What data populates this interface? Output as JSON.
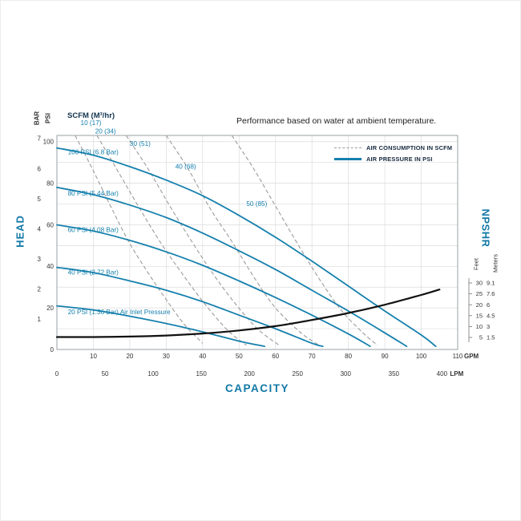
{
  "title": "Performance based on water at ambient temperature.",
  "scfm_header": "SCFM (M³/hr)",
  "colors": {
    "accent_blue": "#1279a7",
    "curve_blue": "#1580ad",
    "dashed_gray": "#9b9b9b",
    "grid": "#dcdcdc",
    "plot_border": "#9aa0a5",
    "text_dark": "#333333",
    "npshr_curve": "#111111"
  },
  "chart_data": {
    "type": "line",
    "title": "Performance based on water at ambient temperature.",
    "legend": [
      {
        "label": "AIR CONSUMPTION IN SCFM",
        "style": "dashed"
      },
      {
        "label": "AIR PRESSURE IN PSI",
        "style": "solid"
      }
    ],
    "x_axis": {
      "label": "CAPACITY",
      "gpm_ticks": [
        10,
        20,
        30,
        40,
        50,
        60,
        70,
        80,
        90,
        100,
        110
      ],
      "gpm_unit": "GPM",
      "lpm_ticks": [
        0,
        50,
        100,
        150,
        200,
        250,
        300,
        350,
        400
      ],
      "lpm_unit": "LPM",
      "gpm_range": [
        0,
        110
      ]
    },
    "y_axis": {
      "label": "HEAD",
      "psi_unit_label": "PSI",
      "bar_unit_label": "BAR",
      "psi_ticks": [
        100,
        80,
        60,
        40,
        20
      ],
      "bar_ticks": [
        7,
        6,
        5,
        4,
        3,
        2,
        1
      ],
      "origin": "0",
      "psi_range": [
        0,
        103
      ]
    },
    "right_axis": {
      "label": "NPSHR",
      "feet_label": "Feet",
      "meters_label": "Meters",
      "feet_ticks": [
        30,
        25,
        20,
        15,
        10,
        5
      ],
      "meters_ticks": [
        "9.1",
        "7.6",
        "6",
        "4.5",
        "3",
        "1.5"
      ]
    },
    "pressure_curves": [
      {
        "label": "100 PSI (6.8 Bar)",
        "label_at": [
          3,
          94
        ],
        "points_gpm_psi": [
          [
            0,
            97
          ],
          [
            10,
            93.5
          ],
          [
            20,
            88
          ],
          [
            30,
            81.5
          ],
          [
            40,
            74
          ],
          [
            50,
            64.5
          ],
          [
            60,
            54
          ],
          [
            70,
            42.5
          ],
          [
            80,
            30.5
          ],
          [
            90,
            18.5
          ],
          [
            100,
            7
          ],
          [
            104,
            1.5
          ]
        ]
      },
      {
        "label": "80 PSI (5.44 Bar)",
        "label_at": [
          3,
          74
        ],
        "points_gpm_psi": [
          [
            0,
            78
          ],
          [
            10,
            74.5
          ],
          [
            20,
            69.5
          ],
          [
            30,
            63.5
          ],
          [
            40,
            56
          ],
          [
            50,
            47.5
          ],
          [
            60,
            38.5
          ],
          [
            70,
            28.5
          ],
          [
            80,
            18.5
          ],
          [
            90,
            8
          ],
          [
            96,
            1.5
          ]
        ]
      },
      {
        "label": "60 PSI (4.08 Bar)",
        "label_at": [
          3,
          56.5
        ],
        "points_gpm_psi": [
          [
            0,
            60
          ],
          [
            10,
            57
          ],
          [
            20,
            52.5
          ],
          [
            30,
            47
          ],
          [
            40,
            40.5
          ],
          [
            50,
            33
          ],
          [
            60,
            25
          ],
          [
            70,
            16.5
          ],
          [
            80,
            7.5
          ],
          [
            86,
            1.5
          ]
        ]
      },
      {
        "label": "40 PSI (2.72 Bar)",
        "label_at": [
          3,
          36
        ],
        "points_gpm_psi": [
          [
            0,
            39.5
          ],
          [
            10,
            37
          ],
          [
            20,
            33
          ],
          [
            30,
            28.5
          ],
          [
            40,
            23
          ],
          [
            50,
            16.5
          ],
          [
            60,
            10
          ],
          [
            70,
            3
          ],
          [
            73,
            1.5
          ]
        ]
      },
      {
        "label": "20 PSI (1.36 Bar) Air Inlet Pressure",
        "label_at": [
          3,
          17
        ],
        "points_gpm_psi": [
          [
            0,
            21
          ],
          [
            10,
            19
          ],
          [
            20,
            16
          ],
          [
            30,
            12.5
          ],
          [
            40,
            8.5
          ],
          [
            50,
            4
          ],
          [
            57,
            1.5
          ]
        ]
      }
    ],
    "air_consumption_curves": [
      {
        "label": "10 (17)",
        "label_at": [
          6.5,
          108
        ],
        "points_gpm_psi": [
          [
            5,
            103
          ],
          [
            10,
            86
          ],
          [
            15,
            68
          ],
          [
            20,
            51
          ],
          [
            25,
            37
          ],
          [
            30,
            24
          ],
          [
            35,
            12
          ],
          [
            40,
            3
          ]
        ]
      },
      {
        "label": "20 (34)",
        "label_at": [
          10.5,
          104
        ],
        "points_gpm_psi": [
          [
            11,
            103
          ],
          [
            17,
            85
          ],
          [
            23,
            67
          ],
          [
            29,
            50
          ],
          [
            35,
            35
          ],
          [
            41,
            21
          ],
          [
            47,
            9
          ],
          [
            52,
            2
          ]
        ]
      },
      {
        "label": "30 (51)",
        "label_at": [
          20,
          98
        ],
        "points_gpm_psi": [
          [
            19,
            103
          ],
          [
            25,
            87
          ],
          [
            31,
            69
          ],
          [
            37,
            52
          ],
          [
            43,
            36
          ],
          [
            49,
            22
          ],
          [
            55,
            10
          ],
          [
            61,
            2
          ]
        ]
      },
      {
        "label": "40 (68)",
        "label_at": [
          32.5,
          87
        ],
        "points_gpm_psi": [
          [
            30,
            103
          ],
          [
            36,
            87
          ],
          [
            42,
            68
          ],
          [
            48,
            52
          ],
          [
            54,
            35
          ],
          [
            60,
            20
          ],
          [
            67,
            8
          ],
          [
            72,
            2
          ]
        ]
      },
      {
        "label": "50 (85)",
        "label_at": [
          52,
          69
        ],
        "points_gpm_psi": [
          [
            48,
            103
          ],
          [
            54,
            87
          ],
          [
            60,
            69
          ],
          [
            66,
            51
          ],
          [
            72,
            34
          ],
          [
            78,
            19
          ],
          [
            84,
            8
          ],
          [
            88,
            2
          ]
        ]
      }
    ],
    "npshr_curve": {
      "feet_axis_range": [
        5,
        30
      ],
      "points_gpm_feet": [
        [
          0,
          5.2
        ],
        [
          10,
          5.2
        ],
        [
          20,
          5.4
        ],
        [
          30,
          5.9
        ],
        [
          40,
          6.8
        ],
        [
          50,
          8.2
        ],
        [
          60,
          10.2
        ],
        [
          70,
          13
        ],
        [
          80,
          16.2
        ],
        [
          90,
          20
        ],
        [
          100,
          24.5
        ],
        [
          105,
          27
        ]
      ]
    }
  }
}
